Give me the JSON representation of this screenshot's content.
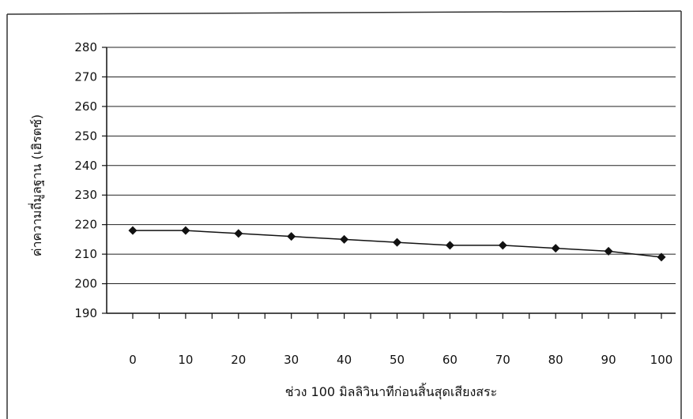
{
  "chart_data": {
    "type": "line",
    "title": "",
    "xlabel": "ช่วง 100 มิลลิวินาทีก่อนสิ้นสุดเสียงสระ",
    "ylabel": "ค่าความถี่มูลฐาน (เฮิรตซ์)",
    "categories": [
      "0",
      "10",
      "20",
      "30",
      "40",
      "50",
      "60",
      "70",
      "80",
      "90",
      "100"
    ],
    "series": [
      {
        "values": [
          218,
          218,
          217,
          216,
          215,
          214,
          213,
          213,
          212,
          211,
          209
        ]
      }
    ],
    "ylim": [
      190,
      280
    ],
    "yticks": [
      "190",
      "200",
      "210",
      "220",
      "230",
      "240",
      "250",
      "260",
      "270",
      "280"
    ],
    "grid": true,
    "legend": "none",
    "colors": {
      "line": "#111111",
      "marker": "#111111",
      "grid": "#222222"
    }
  }
}
